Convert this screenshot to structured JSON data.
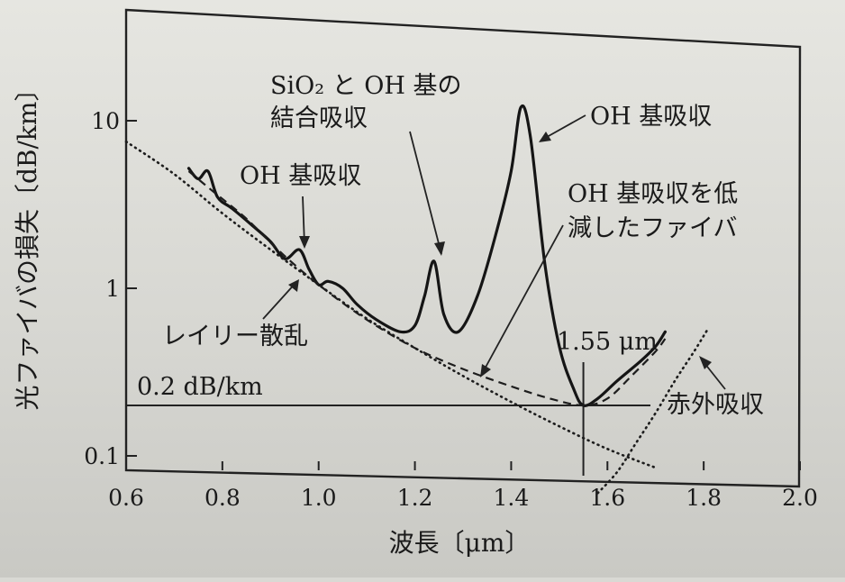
{
  "chart_data": {
    "type": "line",
    "y_scale": "log",
    "xlabel": "波長〔μm〕",
    "ylabel": "光ファイバの損失〔dB/km〕",
    "xlim": [
      0.6,
      2.0
    ],
    "ylim": [
      0.08,
      25
    ],
    "x_ticks": [
      "0.6",
      "0.8",
      "1.0",
      "1.2",
      "1.4",
      "1.6",
      "1.8",
      "2.0"
    ],
    "y_ticks": [
      "0.1",
      "1",
      "10"
    ],
    "grid": false,
    "series": [
      {
        "style": "solid",
        "x": [
          0.73,
          0.75,
          0.77,
          0.79,
          0.82,
          0.86,
          0.9,
          0.93,
          0.96,
          0.98,
          1.0,
          1.02,
          1.05,
          1.08,
          1.12,
          1.17,
          1.2,
          1.22,
          1.24,
          1.26,
          1.29,
          1.33,
          1.37,
          1.4,
          1.42,
          1.44,
          1.47,
          1.5,
          1.53,
          1.55,
          1.58,
          1.62,
          1.67,
          1.7,
          1.72
        ],
        "y": [
          5.2,
          4.5,
          5.0,
          3.5,
          3.0,
          2.4,
          1.9,
          1.5,
          1.7,
          1.3,
          1.05,
          1.1,
          1.0,
          0.8,
          0.65,
          0.55,
          0.6,
          0.9,
          1.45,
          0.7,
          0.55,
          0.9,
          2.2,
          5.0,
          12.0,
          8.0,
          1.4,
          0.45,
          0.25,
          0.2,
          0.22,
          0.28,
          0.37,
          0.45,
          0.55
        ]
      },
      {
        "style": "dashed",
        "x": [
          0.73,
          0.78,
          0.85,
          0.92,
          1.0,
          1.1,
          1.2,
          1.3,
          1.4,
          1.48,
          1.55,
          1.6,
          1.65,
          1.7,
          1.72
        ],
        "y": [
          5.0,
          3.8,
          2.6,
          1.65,
          1.05,
          0.65,
          0.44,
          0.33,
          0.26,
          0.22,
          0.2,
          0.22,
          0.3,
          0.42,
          0.5
        ]
      },
      {
        "style": "dotted",
        "x": [
          0.6,
          0.7,
          0.8,
          0.9,
          1.0,
          1.1,
          1.2,
          1.3,
          1.4,
          1.5,
          1.6,
          1.7
        ],
        "y": [
          7.5,
          4.8,
          2.8,
          1.7,
          1.05,
          0.66,
          0.44,
          0.3,
          0.21,
          0.15,
          0.11,
          0.085
        ]
      },
      {
        "style": "dotted",
        "x": [
          1.58,
          1.62,
          1.66,
          1.7,
          1.74,
          1.78,
          1.81
        ],
        "y": [
          0.06,
          0.08,
          0.12,
          0.18,
          0.28,
          0.42,
          0.58
        ]
      }
    ],
    "reference_lines": [
      {
        "orientation": "horizontal",
        "y": 0.2,
        "label": "0.2 dB/km"
      },
      {
        "orientation": "vertical",
        "x": 1.55,
        "label": "1.55 μm"
      }
    ],
    "annotations": [
      {
        "id": "sio2-oh",
        "line1": "SiO₂ と OH 基の",
        "line2": "結合吸収"
      },
      {
        "id": "oh-1",
        "text": "OH 基吸収"
      },
      {
        "id": "oh-2",
        "text": "OH 基吸収"
      },
      {
        "id": "reduced",
        "line1": "OH 基吸収を低",
        "line2": "減したファイバ"
      },
      {
        "id": "rayleigh",
        "text": "レイリー散乱"
      },
      {
        "id": "infrared",
        "text": "赤外吸収"
      }
    ]
  }
}
